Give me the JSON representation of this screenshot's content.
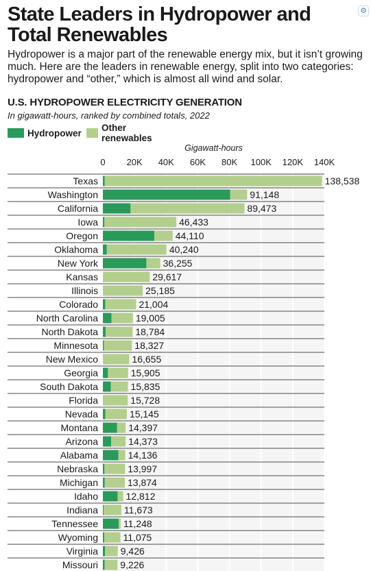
{
  "title": "State Leaders in Hydropower and Total Renewables",
  "subtitle": "Hydropower is a major part of the renewable energy mix, but it isn’t growing much. Here are the leaders in renewable energy, split into two categories: hydropower and “other,” which is almost all wind and solar.",
  "chart_heading": "U.S. HYDROPOWER ELECTRICITY GENERATION",
  "chart_subheading": "In gigawatt-hours, ranked by combined totals, 2022",
  "corner_icon": "settings-icon",
  "colors": {
    "hydro": "#2a9a5b",
    "other": "#b3cf8d",
    "plot_bg": "#f5f5f5",
    "row_line": "#4a4a4a"
  },
  "chart_data": {
    "type": "bar",
    "orientation": "horizontal",
    "stacked": true,
    "xlabel": "Gigawatt-hours",
    "ylabel": "",
    "xlim": [
      0,
      140000
    ],
    "x_ticks": [
      0,
      20000,
      40000,
      60000,
      80000,
      100000,
      120000,
      140000
    ],
    "x_tick_labels": [
      "0",
      "20K",
      "40K",
      "60K",
      "80K",
      "100K",
      "120K",
      "140K"
    ],
    "axis_position": "top",
    "legend_position": "top-left",
    "categories": [
      "Texas",
      "Washington",
      "California",
      "Iowa",
      "Oregon",
      "Oklahoma",
      "New York",
      "Kansas",
      "Illinois",
      "Colorado",
      "North Carolina",
      "North Dakota",
      "Minnesota",
      "New Mexico",
      "Georgia",
      "South Dakota",
      "Florida",
      "Nevada",
      "Montana",
      "Arizona",
      "Alabama",
      "Nebraska",
      "Michigan",
      "Idaho",
      "Indiana",
      "Tennessee",
      "Wyoming",
      "Virginia",
      "Missouri"
    ],
    "series": [
      {
        "name": "Hydropower",
        "values": [
          1200,
          80500,
          17500,
          1000,
          32500,
          2500,
          27500,
          0,
          0,
          1500,
          5500,
          1800,
          700,
          0,
          3200,
          5000,
          100,
          1600,
          9000,
          5200,
          9800,
          1000,
          1200,
          9300,
          500,
          10000,
          900,
          1300,
          1100
        ]
      },
      {
        "name": "Other renewables",
        "values": [
          137338,
          10648,
          71973,
          45433,
          11610,
          37740,
          8755,
          29617,
          25185,
          19504,
          13505,
          16984,
          17627,
          16655,
          12705,
          10835,
          15628,
          13545,
          5397,
          9173,
          4336,
          12997,
          12674,
          3512,
          11173,
          1248,
          10175,
          8126,
          8126
        ]
      }
    ],
    "totals": [
      138538,
      91148,
      89473,
      46433,
      44110,
      40240,
      36255,
      29617,
      25185,
      21004,
      19005,
      18784,
      18327,
      16655,
      15905,
      15835,
      15728,
      15145,
      14397,
      14373,
      14136,
      13997,
      13874,
      12812,
      11673,
      11248,
      11075,
      9426,
      9226
    ],
    "total_labels": [
      "138,538",
      "91,148",
      "89,473",
      "46,433",
      "44,110",
      "40,240",
      "36,255",
      "29,617",
      "25,185",
      "21,004",
      "19,005",
      "18,784",
      "18,327",
      "16,655",
      "15,905",
      "15,835",
      "15,728",
      "15,145",
      "14,397",
      "14,373",
      "14,136",
      "13,997",
      "13,874",
      "12,812",
      "11,673",
      "11,248",
      "11,075",
      "9,426",
      "9,226"
    ]
  }
}
